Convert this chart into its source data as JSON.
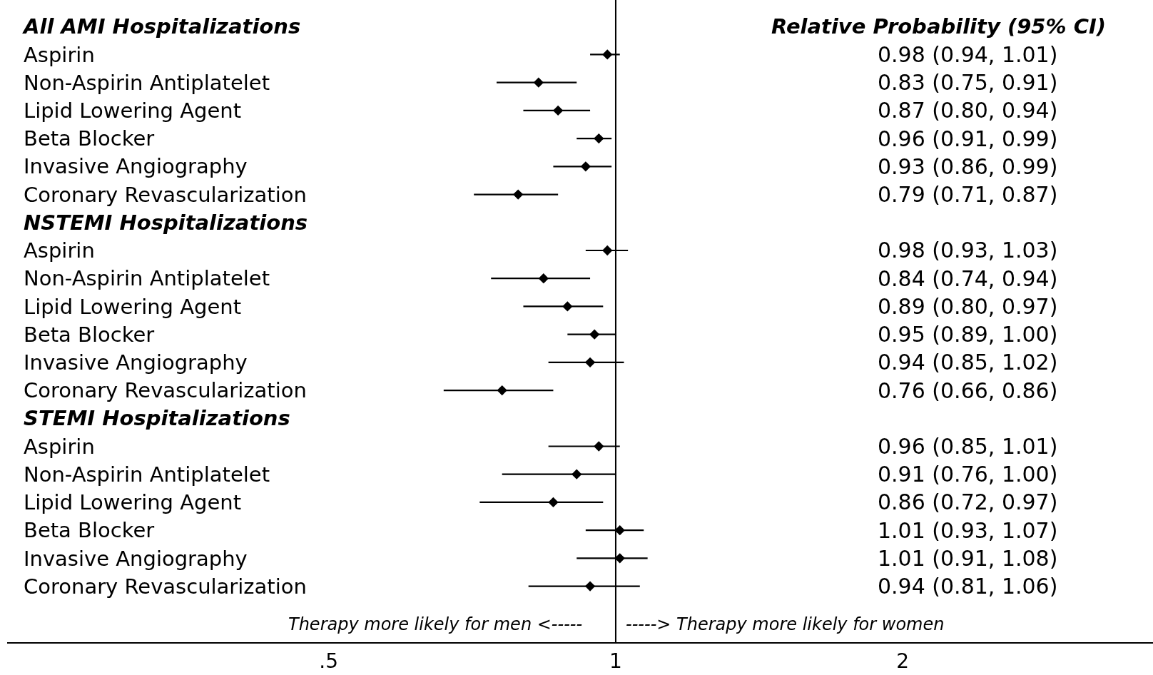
{
  "chart_data": {
    "type": "scatter",
    "orientation": "horizontal",
    "categories": [
      "All AMI Hospitalizations",
      "Aspirin",
      "Non-Aspirin Antiplatelet",
      "Lipid Lowering Agent",
      "Beta Blocker",
      "Invasive Angiography",
      "Coronary Revascularization",
      "NSTEMI Hospitalizations",
      "Aspirin",
      "Non-Aspirin Antiplatelet",
      "Lipid Lowering Agent",
      "Beta Blocker",
      "Invasive Angiography",
      "Coronary Revascularization",
      "STEMI Hospitalizations",
      "Aspirin",
      "Non-Aspirin Antiplatelet",
      "Lipid Lowering Agent",
      "Beta Blocker",
      "Invasive Angiography",
      "Coronary Revascularization"
    ],
    "values": [
      null,
      0.98,
      0.83,
      0.87,
      0.96,
      0.93,
      0.79,
      null,
      0.98,
      0.84,
      0.89,
      0.95,
      0.94,
      0.76,
      null,
      0.96,
      0.91,
      0.86,
      1.01,
      1.01,
      0.94
    ],
    "errors": [
      null,
      [
        0.94,
        1.01
      ],
      [
        0.75,
        0.91
      ],
      [
        0.8,
        0.94
      ],
      [
        0.91,
        0.99
      ],
      [
        0.86,
        0.99
      ],
      [
        0.71,
        0.87
      ],
      null,
      [
        0.93,
        1.03
      ],
      [
        0.74,
        0.94
      ],
      [
        0.8,
        0.97
      ],
      [
        0.89,
        1.0
      ],
      [
        0.85,
        1.02
      ],
      [
        0.66,
        0.86
      ],
      null,
      [
        0.85,
        1.01
      ],
      [
        0.76,
        1.0
      ],
      [
        0.72,
        0.97
      ],
      [
        0.93,
        1.07
      ],
      [
        0.91,
        1.08
      ],
      [
        0.81,
        1.06
      ]
    ],
    "color": "#000000",
    "marker": "diamond",
    "log": "x",
    "xlim": [
      0.23,
      3.66
    ],
    "xticks": [
      {
        "value": 0.5,
        "label": ".5"
      },
      1,
      2
    ],
    "ref_lines": [
      {
        "axis": "x",
        "value": 1,
        "color": "#000000"
      }
    ],
    "annotations": [
      "Relative Probability (95% CI)",
      "Therapy more likely for men <-----",
      "-----> Therapy more likely for women",
      "0.98 (0.94, 1.01)",
      "0.83 (0.75, 0.91)",
      "0.87 (0.80, 0.94)",
      "0.96 (0.91, 0.99)",
      "0.93 (0.86, 0.99)",
      "0.79 (0.71, 0.87)",
      "0.98 (0.93, 1.03)",
      "0.84 (0.74, 0.94)",
      "0.89 (0.80, 0.97)",
      "0.95 (0.89, 1.00)",
      "0.94 (0.85, 1.02)",
      "0.76 (0.66, 0.86)",
      "0.96 (0.85, 1.01)",
      "0.91 (0.76, 1.00)",
      "0.86 (0.72, 0.97)",
      "1.01 (0.93, 1.07)",
      "1.01 (0.91, 1.08)",
      "0.94 (0.81, 1.06)"
    ],
    "grid": false
  }
}
